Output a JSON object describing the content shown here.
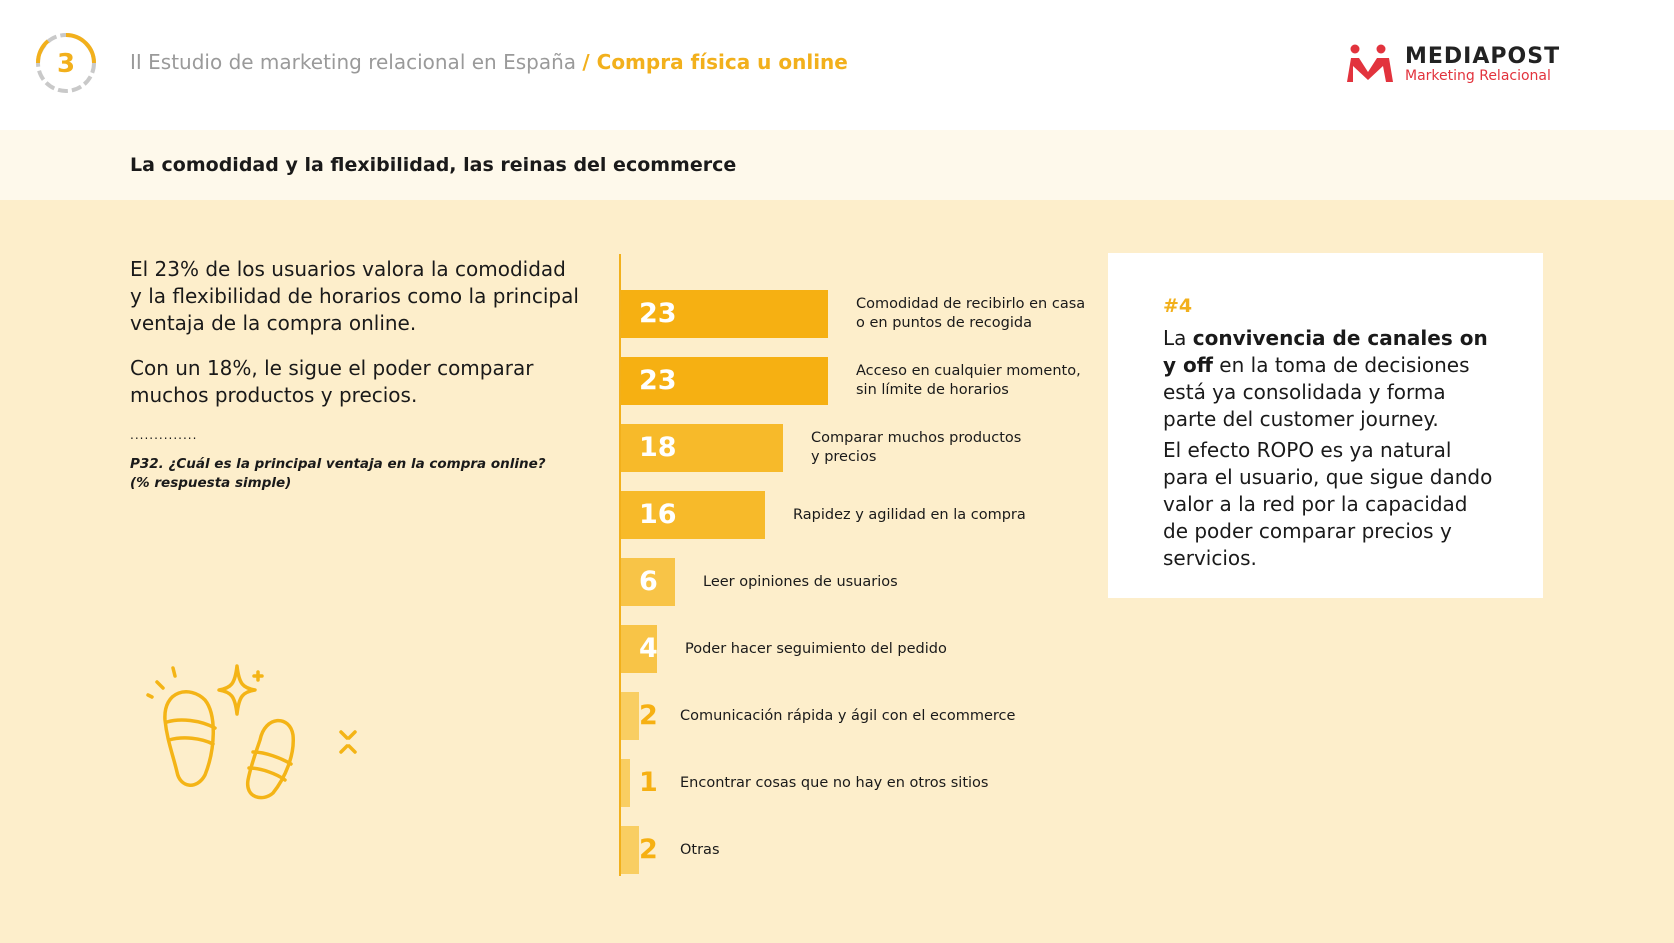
{
  "header": {
    "section_number": "3",
    "title": "II Estudio de marketing relacional en España",
    "subtitle": "/ Compra física u online",
    "logo": {
      "name": "MEDIAPOST",
      "tagline": "Marketing Relacional"
    }
  },
  "subheader": {
    "title": "La comodidad y la flexibilidad, las reinas del ecommerce"
  },
  "intro": {
    "paragraph1": "El 23% de los usuarios valora la comodidad y la flexibilidad de horarios como la principal ventaja de la compra online.",
    "paragraph2": "Con un 18%, le sigue el poder comparar muchos productos y precios.",
    "dots": "..............",
    "question_line1": "P32. ¿Cuál es la principal ventaja en la compra online?",
    "question_line2": "(% respuesta simple)"
  },
  "chart_data": {
    "type": "bar",
    "orientation": "horizontal",
    "categories": [
      "Comodidad de recibirlo en casa o en puntos de recogida",
      "Acceso en cualquier momento, sin límite de horarios",
      "Comparar muchos productos y precios",
      "Rapidez y agilidad en la compra",
      "Leer opiniones de usuarios",
      "Poder hacer seguimiento del pedido",
      "Comunicación rápida y ágil con el ecommerce",
      "Encontrar cosas que no hay en otros sitios",
      "Otras"
    ],
    "label_lines": [
      [
        "Comodidad de recibirlo en casa",
        "o en puntos de recogida"
      ],
      [
        "Acceso en cualquier momento,",
        "sin límite de horarios"
      ],
      [
        "Comparar muchos productos",
        "y precios"
      ],
      [
        "Rapidez y agilidad en la compra"
      ],
      [
        "Leer opiniones de usuarios"
      ],
      [
        "Poder hacer seguimiento del pedido"
      ],
      [
        "Comunicación rápida y ágil con el ecommerce"
      ],
      [
        "Encontrar cosas que no hay en otros sitios"
      ],
      [
        "Otras"
      ]
    ],
    "values": [
      23,
      23,
      18,
      16,
      6,
      4,
      2,
      1,
      2
    ],
    "value_labels": [
      "23",
      "23",
      "18",
      "16",
      "6",
      "4",
      "2",
      "1",
      "2"
    ],
    "colors": [
      "#f6b012",
      "#f6b012",
      "#f7ba2a",
      "#f7ba2a",
      "#f8c447",
      "#f8c447",
      "#f9ce62",
      "#f9ce62",
      "#f9ce62"
    ],
    "title": "",
    "xlabel": "",
    "ylabel": "",
    "xlim": [
      0,
      23
    ],
    "grid": false,
    "legend": "none"
  },
  "card": {
    "tag": "#4",
    "p1_pre": "La ",
    "p1_bold": "convivencia de canales on y off",
    "p1_post": " en la toma de decisiones está ya consolidada y forma parte del customer journey.",
    "p2": "El efecto ROPO es ya natural para el usuario, que sigue dando valor a la red por la capacidad de poder comparar precios y servicios."
  },
  "colors": {
    "accent": "#f2b01c",
    "brand_red": "#e2333d",
    "panel_bg": "#fdeecb",
    "band_bg": "#fef9eb"
  }
}
